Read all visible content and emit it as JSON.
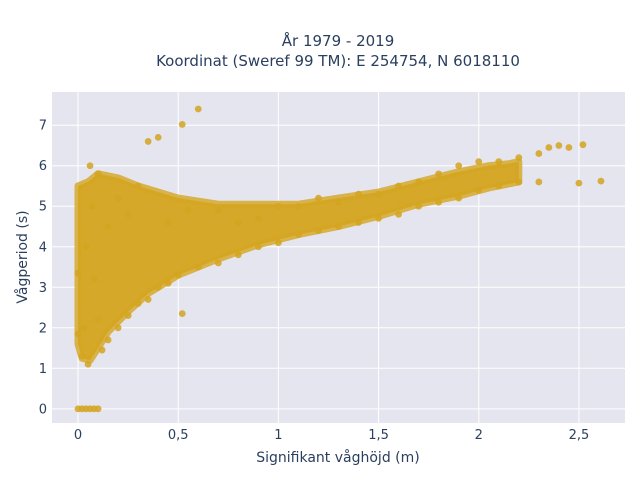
{
  "chart_data": {
    "type": "scatter",
    "title": "År 1979 - 2019",
    "subtitle": "Koordinat (Sweref 99 TM): E 254754, N 6018110",
    "xlabel": "Signifikant våghöjd (m)",
    "ylabel": "Vågperiod (s)",
    "xlim": [
      -0.13,
      2.73
    ],
    "ylim": [
      -0.35,
      7.82
    ],
    "x_ticks": [
      0,
      0.5,
      1,
      1.5,
      2,
      2.5
    ],
    "x_tick_labels": [
      "0",
      "0,5",
      "1",
      "1,5",
      "2",
      "2,5"
    ],
    "y_ticks": [
      0,
      1,
      2,
      3,
      4,
      5,
      6,
      7
    ],
    "y_tick_labels": [
      "0",
      "1",
      "2",
      "3",
      "4",
      "5",
      "6",
      "7"
    ],
    "grid": true,
    "legend": "none",
    "colors": {
      "marker": "#d4a520",
      "plot_bg": "#e5e5ef",
      "grid": "#ffffff",
      "text": "#2a3f5f"
    },
    "series": [
      {
        "points": [
          [
            0.0,
            0.0
          ],
          [
            0.02,
            0.0
          ],
          [
            0.04,
            0.0
          ],
          [
            0.06,
            0.0
          ],
          [
            0.08,
            0.0
          ],
          [
            0.1,
            0.0
          ],
          [
            0.0,
            3.35
          ],
          [
            0.0,
            1.85
          ],
          [
            0.02,
            1.3
          ],
          [
            0.03,
            2.0
          ],
          [
            0.04,
            4.0
          ],
          [
            0.05,
            1.1
          ],
          [
            0.06,
            6.0
          ],
          [
            0.07,
            5.0
          ],
          [
            0.08,
            3.2
          ],
          [
            0.1,
            2.2
          ],
          [
            0.1,
            5.8
          ],
          [
            0.12,
            1.45
          ],
          [
            0.15,
            1.7
          ],
          [
            0.15,
            4.5
          ],
          [
            0.2,
            2.0
          ],
          [
            0.2,
            5.2
          ],
          [
            0.25,
            2.3
          ],
          [
            0.25,
            4.8
          ],
          [
            0.3,
            2.6
          ],
          [
            0.3,
            5.5
          ],
          [
            0.35,
            6.6
          ],
          [
            0.35,
            2.7
          ],
          [
            0.4,
            6.7
          ],
          [
            0.4,
            3.0
          ],
          [
            0.45,
            3.1
          ],
          [
            0.45,
            4.6
          ],
          [
            0.5,
            3.3
          ],
          [
            0.52,
            2.35
          ],
          [
            0.55,
            4.9
          ],
          [
            0.6,
            7.4
          ],
          [
            0.6,
            3.5
          ],
          [
            0.52,
            7.02
          ],
          [
            0.7,
            3.6
          ],
          [
            0.7,
            4.9
          ],
          [
            0.8,
            3.8
          ],
          [
            0.8,
            4.6
          ],
          [
            0.9,
            4.0
          ],
          [
            0.9,
            4.7
          ],
          [
            1.0,
            4.1
          ],
          [
            1.0,
            5.0
          ],
          [
            1.1,
            4.3
          ],
          [
            1.1,
            5.0
          ],
          [
            1.2,
            4.4
          ],
          [
            1.2,
            5.2
          ],
          [
            1.3,
            4.5
          ],
          [
            1.3,
            5.1
          ],
          [
            1.4,
            4.6
          ],
          [
            1.4,
            5.3
          ],
          [
            1.5,
            4.7
          ],
          [
            1.5,
            5.3
          ],
          [
            1.6,
            4.8
          ],
          [
            1.6,
            5.5
          ],
          [
            1.7,
            5.0
          ],
          [
            1.7,
            5.6
          ],
          [
            1.8,
            5.1
          ],
          [
            1.8,
            5.8
          ],
          [
            1.9,
            5.2
          ],
          [
            1.9,
            6.0
          ],
          [
            2.0,
            5.4
          ],
          [
            2.0,
            6.1
          ],
          [
            2.1,
            5.5
          ],
          [
            2.1,
            6.1
          ],
          [
            2.2,
            5.6
          ],
          [
            2.2,
            6.2
          ],
          [
            2.3,
            5.6
          ],
          [
            2.3,
            6.3
          ],
          [
            2.35,
            6.45
          ],
          [
            2.4,
            6.5
          ],
          [
            2.45,
            6.45
          ],
          [
            2.5,
            5.57
          ],
          [
            2.52,
            6.52
          ],
          [
            2.61,
            5.62
          ]
        ]
      }
    ]
  }
}
